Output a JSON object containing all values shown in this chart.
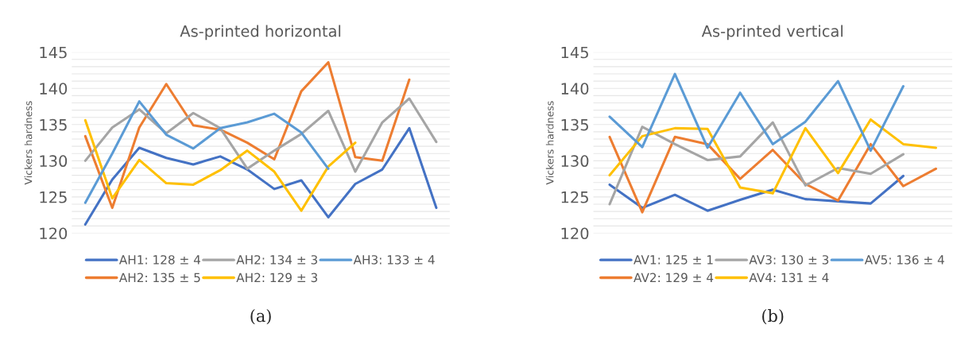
{
  "chart_data": [
    {
      "type": "line",
      "title": "As-printed horizontal",
      "ylabel": "Vickers hardness",
      "categories": [
        null,
        null,
        null,
        null,
        null,
        null,
        null,
        null,
        null,
        null,
        null,
        null,
        null,
        null
      ],
      "ylim": [
        120,
        145
      ],
      "yticks": [
        120,
        {
          "value": 121,
          "label": null
        },
        {
          "value": 122,
          "label": null
        },
        {
          "value": 123,
          "label": null
        },
        {
          "value": 124,
          "label": null
        },
        125,
        {
          "value": 126,
          "label": null
        },
        {
          "value": 127,
          "label": null
        },
        {
          "value": 128,
          "label": null
        },
        {
          "value": 129,
          "label": null
        },
        130,
        {
          "value": 131,
          "label": null
        },
        {
          "value": 132,
          "label": null
        },
        {
          "value": 133,
          "label": null
        },
        {
          "value": 134,
          "label": null
        },
        135,
        {
          "value": 136,
          "label": null
        },
        {
          "value": 137,
          "label": null
        },
        {
          "value": 138,
          "label": null
        },
        {
          "value": 139,
          "label": null
        },
        140,
        {
          "value": 141,
          "label": null
        },
        {
          "value": 142,
          "label": null
        },
        {
          "value": 143,
          "label": null
        },
        {
          "value": 144,
          "label": null
        },
        145
      ],
      "grid": "y",
      "legend": "bottom",
      "marker": "none",
      "line_style": "solid",
      "series": [
        {
          "name": "AH1: 128 ± 4",
          "color": "#4472c4",
          "values": [
            121.2,
            127.4,
            131.8,
            130.4,
            129.5,
            130.6,
            128.8,
            126.1,
            127.3,
            122.2,
            126.8,
            128.8,
            134.5,
            123.5
          ]
        },
        {
          "name": "AH2: 135 ± 5",
          "color": "#ed7d31",
          "values": [
            133.4,
            123.5,
            134.6,
            140.6,
            134.9,
            134.3,
            132.5,
            130.2,
            139.6,
            143.6,
            130.5,
            130.0,
            141.2,
            null
          ]
        },
        {
          "name": "AH2: 134 ± 3",
          "color": "#a5a5a5",
          "values": [
            130.0,
            134.6,
            137.1,
            133.8,
            136.6,
            134.5,
            128.9,
            131.4,
            133.7,
            136.9,
            128.5,
            135.3,
            138.6,
            132.6
          ]
        },
        {
          "name": "AH2: 129 ± 3",
          "color": "#ffc000",
          "values": [
            135.6,
            124.8,
            130.1,
            126.9,
            126.7,
            128.7,
            131.4,
            128.5,
            123.1,
            129.2,
            132.5,
            null,
            null,
            null
          ]
        },
        {
          "name": "AH3: 133 ± 4",
          "color": "#5b9bd5",
          "values": [
            124.2,
            131.0,
            138.2,
            133.6,
            131.7,
            134.5,
            135.3,
            136.5,
            133.9,
            128.9,
            null,
            null,
            null,
            null
          ]
        }
      ],
      "annotations": [
        "(a)"
      ]
    },
    {
      "type": "line",
      "title": "As-printed vertical",
      "ylabel": "Vickers hardness",
      "categories": [
        null,
        null,
        null,
        null,
        null,
        null,
        null,
        null,
        null,
        null,
        null
      ],
      "ylim": [
        120,
        145
      ],
      "yticks": [
        120,
        {
          "value": 121,
          "label": null
        },
        {
          "value": 122,
          "label": null
        },
        {
          "value": 123,
          "label": null
        },
        {
          "value": 124,
          "label": null
        },
        125,
        {
          "value": 126,
          "label": null
        },
        {
          "value": 127,
          "label": null
        },
        {
          "value": 128,
          "label": null
        },
        {
          "value": 129,
          "label": null
        },
        130,
        {
          "value": 131,
          "label": null
        },
        {
          "value": 132,
          "label": null
        },
        {
          "value": 133,
          "label": null
        },
        {
          "value": 134,
          "label": null
        },
        135,
        {
          "value": 136,
          "label": null
        },
        {
          "value": 137,
          "label": null
        },
        {
          "value": 138,
          "label": null
        },
        {
          "value": 139,
          "label": null
        },
        140,
        {
          "value": 141,
          "label": null
        },
        {
          "value": 142,
          "label": null
        },
        {
          "value": 143,
          "label": null
        },
        {
          "value": 144,
          "label": null
        },
        145
      ],
      "grid": "y",
      "legend": "bottom",
      "marker": "none",
      "line_style": "solid",
      "series": [
        {
          "name": "AV1: 125 ± 1",
          "color": "#4472c4",
          "values": [
            126.7,
            123.5,
            125.3,
            123.1,
            124.6,
            126.0,
            124.7,
            124.4,
            124.1,
            127.9,
            null
          ]
        },
        {
          "name": "AV2: 129 ± 4",
          "color": "#ed7d31",
          "values": [
            133.3,
            122.9,
            133.3,
            132.3,
            127.5,
            131.5,
            126.8,
            124.5,
            132.3,
            126.5,
            128.9
          ]
        },
        {
          "name": "AV3: 130 ± 3",
          "color": "#a5a5a5",
          "values": [
            124.0,
            134.7,
            132.3,
            130.1,
            130.6,
            135.3,
            126.6,
            129.0,
            128.2,
            130.9,
            null
          ]
        },
        {
          "name": "AV4: 131 ± 4",
          "color": "#ffc000",
          "values": [
            128.0,
            133.4,
            134.5,
            134.4,
            126.3,
            125.5,
            134.5,
            128.3,
            135.7,
            132.3,
            131.8
          ]
        },
        {
          "name": "AV5: 136 ± 4",
          "color": "#5b9bd5",
          "values": [
            136.1,
            131.9,
            142.0,
            131.8,
            139.4,
            132.3,
            135.4,
            141.0,
            131.4,
            140.3,
            null
          ]
        }
      ],
      "annotations": [
        "(b)"
      ]
    }
  ]
}
